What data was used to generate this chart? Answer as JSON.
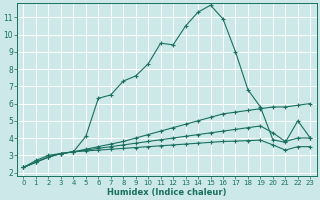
{
  "xlabel": "Humidex (Indice chaleur)",
  "bg_color": "#cce8e8",
  "grid_color": "#ffffff",
  "line_color": "#1a7060",
  "xlim": [
    -0.5,
    23.5
  ],
  "ylim": [
    1.8,
    11.8
  ],
  "xticks": [
    0,
    1,
    2,
    3,
    4,
    5,
    6,
    7,
    8,
    9,
    10,
    11,
    12,
    13,
    14,
    15,
    16,
    17,
    18,
    19,
    20,
    21,
    22,
    23
  ],
  "yticks": [
    2,
    3,
    4,
    5,
    6,
    7,
    8,
    9,
    10,
    11
  ],
  "series": [
    {
      "x": [
        0,
        1,
        2,
        3,
        4,
        5,
        6,
        7,
        8,
        9,
        10,
        11,
        12,
        13,
        14,
        15,
        16,
        17,
        18,
        19,
        20,
        21,
        22,
        23
      ],
      "y": [
        2.3,
        2.7,
        3.0,
        3.1,
        3.2,
        4.1,
        6.3,
        6.5,
        7.3,
        7.6,
        8.3,
        9.5,
        9.4,
        10.5,
        11.3,
        11.7,
        10.9,
        9.0,
        6.8,
        5.8,
        3.9,
        3.75,
        5.0,
        4.0
      ]
    },
    {
      "x": [
        0,
        1,
        2,
        3,
        4,
        5,
        6,
        7,
        8,
        9,
        10,
        11,
        12,
        13,
        14,
        15,
        16,
        17,
        18,
        19,
        20,
        21,
        22,
        23
      ],
      "y": [
        2.3,
        2.6,
        2.9,
        3.1,
        3.2,
        3.35,
        3.5,
        3.65,
        3.8,
        4.0,
        4.2,
        4.4,
        4.6,
        4.8,
        5.0,
        5.2,
        5.4,
        5.5,
        5.6,
        5.7,
        5.8,
        5.8,
        5.9,
        6.0
      ]
    },
    {
      "x": [
        0,
        1,
        2,
        3,
        4,
        5,
        6,
        7,
        8,
        9,
        10,
        11,
        12,
        13,
        14,
        15,
        16,
        17,
        18,
        19,
        20,
        21,
        22,
        23
      ],
      "y": [
        2.3,
        2.6,
        2.9,
        3.1,
        3.2,
        3.3,
        3.4,
        3.5,
        3.6,
        3.7,
        3.8,
        3.9,
        4.0,
        4.1,
        4.2,
        4.3,
        4.4,
        4.5,
        4.6,
        4.7,
        4.3,
        3.8,
        4.0,
        4.0
      ]
    },
    {
      "x": [
        0,
        1,
        2,
        3,
        4,
        5,
        6,
        7,
        8,
        9,
        10,
        11,
        12,
        13,
        14,
        15,
        16,
        17,
        18,
        19,
        20,
        21,
        22,
        23
      ],
      "y": [
        2.3,
        2.6,
        2.9,
        3.1,
        3.2,
        3.25,
        3.3,
        3.35,
        3.4,
        3.45,
        3.5,
        3.55,
        3.6,
        3.65,
        3.7,
        3.75,
        3.8,
        3.82,
        3.85,
        3.88,
        3.6,
        3.3,
        3.5,
        3.5
      ]
    }
  ]
}
